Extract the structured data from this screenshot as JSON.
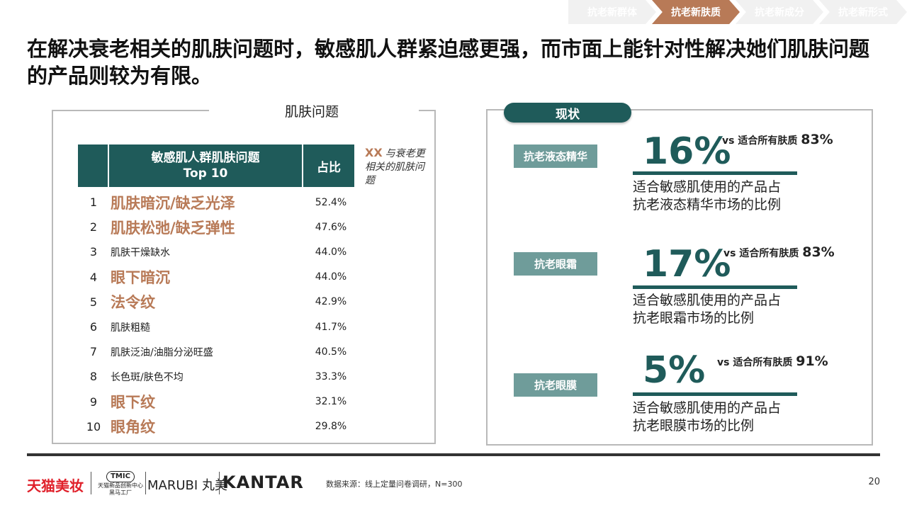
{
  "nav": {
    "steps": [
      {
        "label": "抗老新群体",
        "active": false
      },
      {
        "label": "抗老新肤质",
        "active": true
      },
      {
        "label": "抗老新成分",
        "active": false
      },
      {
        "label": "抗老新形式",
        "active": false
      }
    ]
  },
  "title": "在解决衰老相关的肌肤问题时，敏感肌人群紧迫感更强，而市面上能针对性解决她们肌肤问题的产品则较为有限。",
  "left": {
    "panel_title": "肌肤问题",
    "table": {
      "header_line1": "敏感肌人群肌肤问题",
      "header_line2": "Top 10",
      "header_ratio": "占比",
      "rows": [
        {
          "rank": "1",
          "label": "肌肤暗沉/缺乏光泽",
          "pct": "52.4%",
          "highlight": true
        },
        {
          "rank": "2",
          "label": "肌肤松弛/缺乏弹性",
          "pct": "47.6%",
          "highlight": true
        },
        {
          "rank": "3",
          "label": "肌肤干燥缺水",
          "pct": "44.0%",
          "highlight": false
        },
        {
          "rank": "4",
          "label": "眼下暗沉",
          "pct": "44.0%",
          "highlight": true
        },
        {
          "rank": "5",
          "label": "法令纹",
          "pct": "42.9%",
          "highlight": true
        },
        {
          "rank": "6",
          "label": "肌肤粗糙",
          "pct": "41.7%",
          "highlight": false
        },
        {
          "rank": "7",
          "label": "肌肤泛油/油脂分泌旺盛",
          "pct": "40.5%",
          "highlight": false
        },
        {
          "rank": "8",
          "label": "长色斑/肤色不均",
          "pct": "33.3%",
          "highlight": false
        },
        {
          "rank": "9",
          "label": "眼下纹",
          "pct": "32.1%",
          "highlight": true
        },
        {
          "rank": "10",
          "label": "眼角纹",
          "pct": "29.8%",
          "highlight": true
        }
      ]
    },
    "legend": {
      "marker": "XX",
      "text": "与衰老更相关的肌肤问题"
    }
  },
  "right": {
    "pill": "现状",
    "metrics": [
      {
        "tag": "抗老液态精华",
        "value": "16%",
        "vs_text": "vs 适合所有肤质 ",
        "vs_value": "83%",
        "desc_line1": "适合敏感肌使用的产品占",
        "desc_line2": "抗老液态精华市场的比例"
      },
      {
        "tag": "抗老眼霜",
        "value": "17%",
        "vs_text": "vs 适合所有肤质 ",
        "vs_value": "83%",
        "desc_line1": "适合敏感肌使用的产品占",
        "desc_line2": "抗老眼霜市场的比例"
      },
      {
        "tag": "抗老眼膜",
        "value": "5%",
        "vs_text": "vs 适合所有肤质 ",
        "vs_value": "91%",
        "desc_line1": "适合敏感肌使用的产品占",
        "desc_line2": "抗老眼膜市场的比例"
      }
    ]
  },
  "footer": {
    "logo_tmall": "天猫美妆",
    "logo_tmic_badge": "TMIC",
    "logo_tmic_sub1": "天猫新品创新中心",
    "logo_tmic_sub2": "黑马工厂",
    "logo_marubi": "MARUBI 丸美",
    "logo_kantar": "KANTAR",
    "source": "数据来源：线上定量问卷调研，N=300",
    "page": "20"
  },
  "colors": {
    "accent": "#b87a57",
    "teal": "#1f5b5a",
    "tag": "#6f9c9a",
    "tmall_red": "#e0202a"
  }
}
